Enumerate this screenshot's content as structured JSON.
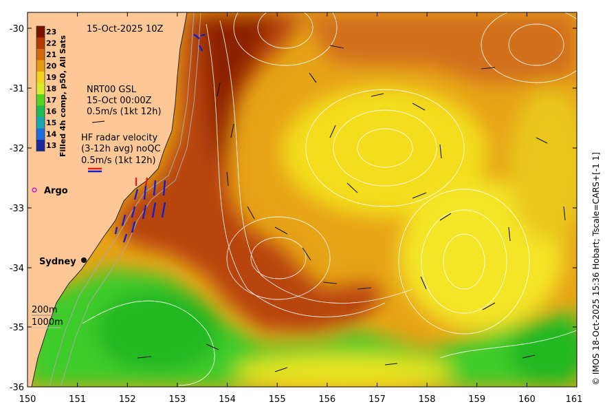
{
  "map": {
    "timestamp": "15-Oct-2025 10Z",
    "colorbar": {
      "label": "Filled 4h comp, p50, All Sats",
      "ticks": [
        "23",
        "22",
        "21",
        "20",
        "19",
        "18",
        "17",
        "16",
        "15",
        "14",
        "13"
      ],
      "colors": [
        "#7a1400",
        "#b23a00",
        "#cf6a10",
        "#e39a12",
        "#f2d21e",
        "#d9ee2a",
        "#57d422",
        "#1ebc52",
        "#19a8b0",
        "#1f6ee0",
        "#1a2a9c"
      ]
    },
    "legend": {
      "nrt_line1": "NRT00 GSL",
      "nrt_line2": "15-Oct 00:00Z",
      "nrt_line3": "0.5m/s (1kt 12h)",
      "hf_line1": "HF radar velocity",
      "hf_line2": "(3-12h avg) noQC",
      "hf_line3": "0.5m/s (1kt 12h)",
      "argo": "Argo",
      "depth_200": "200m",
      "depth_1000": "1000m"
    },
    "places": {
      "sydney": "Sydney"
    },
    "y_ticks": [
      "-30",
      "-31",
      "-32",
      "-33",
      "-34",
      "-35",
      "-36"
    ],
    "x_ticks": [
      "150",
      "151",
      "152",
      "153",
      "154",
      "155",
      "156",
      "157",
      "158",
      "159",
      "160",
      "161"
    ],
    "credit": "© IMOS 18-Oct-2025 15:36 Hobart; Tscale=CARS+[-1 1]",
    "colors": {
      "land": "#fdc896",
      "warm": "#b84410",
      "mid": "#df8c12",
      "cool": "#f3dd1e",
      "coolest": "#3ccc2a",
      "contour": "#ffffff"
    }
  }
}
